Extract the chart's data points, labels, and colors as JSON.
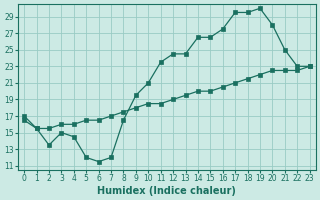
{
  "xlabel": "Humidex (Indice chaleur)",
  "background_color": "#cceae4",
  "grid_color": "#99ccc4",
  "line_color": "#1a7060",
  "xlim": [
    -0.5,
    23.5
  ],
  "ylim": [
    10.5,
    30.5
  ],
  "yticks": [
    11,
    13,
    15,
    17,
    19,
    21,
    23,
    25,
    27,
    29
  ],
  "xticks": [
    0,
    1,
    2,
    3,
    4,
    5,
    6,
    7,
    8,
    9,
    10,
    11,
    12,
    13,
    14,
    15,
    16,
    17,
    18,
    19,
    20,
    21,
    22,
    23
  ],
  "line1_x": [
    0,
    1,
    2,
    3,
    4,
    5,
    6,
    7,
    8,
    9,
    10,
    11,
    12,
    13,
    14,
    15,
    16,
    17,
    18,
    19,
    20,
    21,
    22,
    23
  ],
  "line1_y": [
    17,
    15.5,
    13.5,
    15,
    14.5,
    12,
    11.5,
    12,
    16.5,
    19.5,
    21,
    23.5,
    24.5,
    24.5,
    26.5,
    26.5,
    27.5,
    29.5,
    29.5,
    30,
    28,
    25,
    23,
    23
  ],
  "line2_x": [
    0,
    1,
    2,
    3,
    4,
    5,
    6,
    7,
    8,
    9,
    10,
    11,
    12,
    13,
    14,
    15,
    16,
    17,
    18,
    19,
    20,
    21,
    22,
    23
  ],
  "line2_y": [
    16.5,
    15.5,
    15.5,
    16,
    16,
    16.5,
    16.5,
    17,
    17.5,
    18,
    18.5,
    18.5,
    19,
    19.5,
    20,
    20,
    20.5,
    21,
    21.5,
    22,
    22.5,
    22.5,
    22.5,
    23
  ],
  "font_size_tick": 5.5,
  "font_size_xlabel": 7
}
